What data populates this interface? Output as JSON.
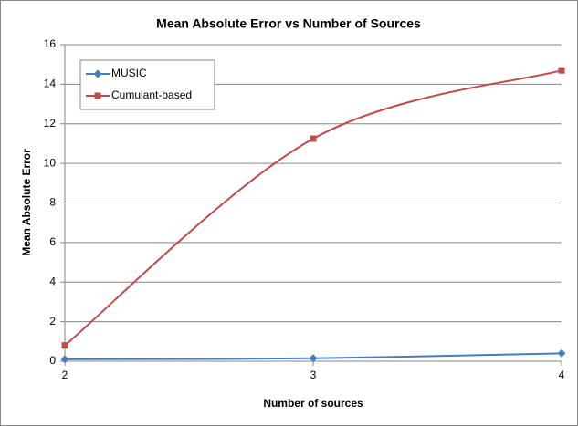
{
  "chart_data": {
    "type": "line",
    "title": "Mean Absolute Error vs Number of Sources",
    "x_label": "Number of sources",
    "y_label": "Mean Absolute Error",
    "x": [
      2,
      3,
      4
    ],
    "series": [
      {
        "name": "MUSIC",
        "color": "#4a7ebb",
        "marker": "diamond",
        "values": [
          0.1,
          0.15,
          0.4
        ]
      },
      {
        "name": "Cumulant-based",
        "color": "#be4b48",
        "marker": "square",
        "values": [
          0.8,
          11.25,
          14.7
        ]
      }
    ],
    "xlim": [
      2,
      4
    ],
    "xticks": [
      2,
      3,
      4
    ],
    "ylim": [
      0,
      16
    ],
    "yticks": [
      0,
      2,
      4,
      6,
      8,
      10,
      12,
      14,
      16
    ],
    "grid": true,
    "smooth": true,
    "legend": "upper left"
  }
}
